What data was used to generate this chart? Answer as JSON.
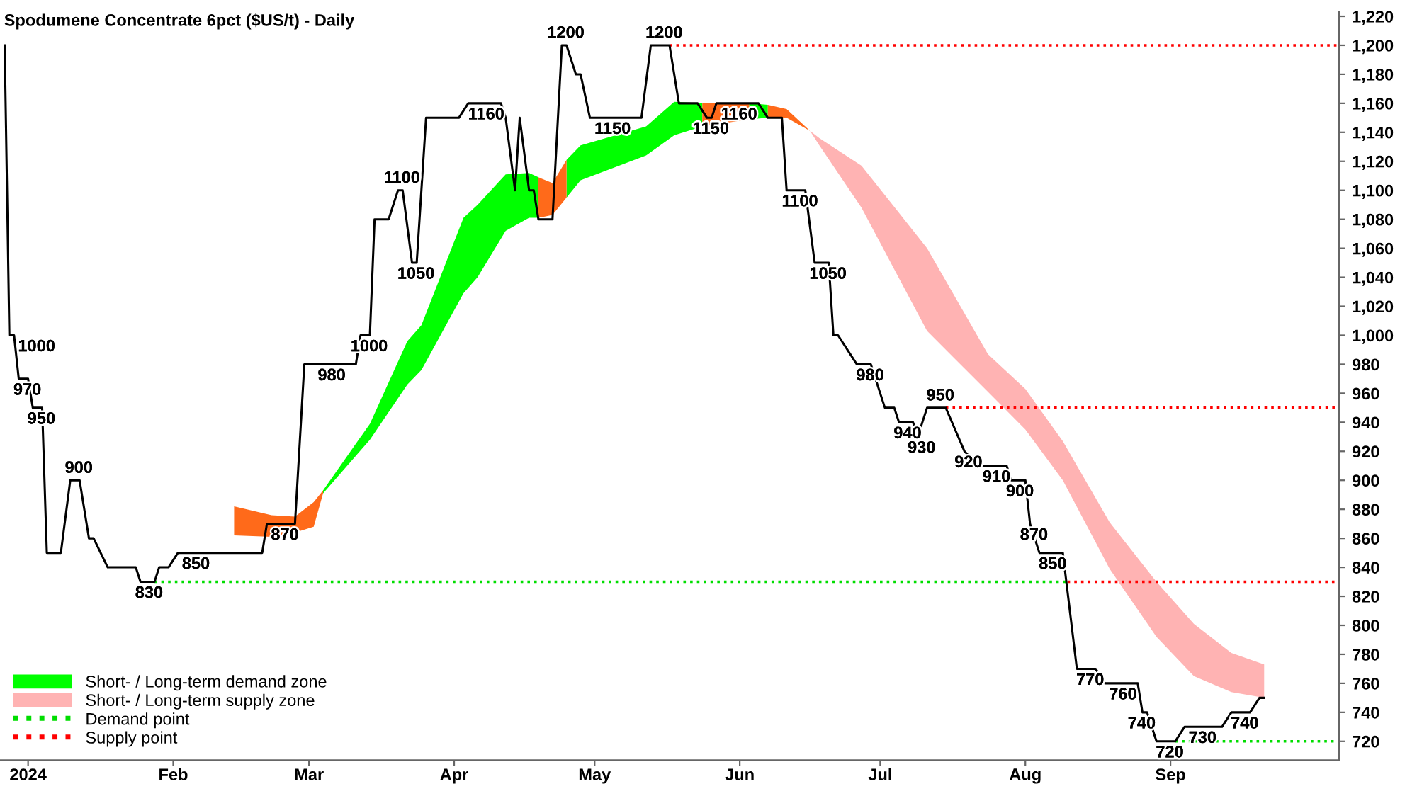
{
  "chart_data": {
    "type": "line",
    "title": "Spodumene Concentrate 6pct ($US/t) - Daily",
    "xlim": [
      "2023-12-26",
      "2024-10-07"
    ],
    "xticks": [
      {
        "value": "2024-01-01",
        "label": "2024"
      },
      {
        "value": "2024-02-01",
        "label": "Feb"
      },
      {
        "value": "2024-03-01",
        "label": "Mar"
      },
      {
        "value": "2024-04-01",
        "label": "Apr"
      },
      {
        "value": "2024-05-01",
        "label": "May"
      },
      {
        "value": "2024-06-01",
        "label": "Jun"
      },
      {
        "value": "2024-07-01",
        "label": "Jul"
      },
      {
        "value": "2024-08-01",
        "label": "Aug"
      },
      {
        "value": "2024-09-01",
        "label": "Sep"
      }
    ],
    "ylim": [
      707,
      1223
    ],
    "yticks": [
      720,
      740,
      760,
      780,
      800,
      820,
      840,
      860,
      880,
      900,
      920,
      940,
      960,
      980,
      {
        "value": 1000,
        "label": "1,000"
      },
      {
        "value": 1020,
        "label": "1,020"
      },
      {
        "value": 1040,
        "label": "1,040"
      },
      {
        "value": 1060,
        "label": "1,060"
      },
      {
        "value": 1080,
        "label": "1,080"
      },
      {
        "value": 1100,
        "label": "1,100"
      },
      {
        "value": 1120,
        "label": "1,120"
      },
      {
        "value": 1140,
        "label": "1,140"
      },
      {
        "value": 1160,
        "label": "1,160"
      },
      {
        "value": 1180,
        "label": "1,180"
      },
      {
        "value": 1200,
        "label": "1,200"
      },
      {
        "value": 1220,
        "label": "1,220"
      }
    ],
    "grid": false,
    "legend": "bottom left",
    "marker": "none",
    "series": [
      {
        "type": "line",
        "color": "#000000",
        "line_style": "solid",
        "x": [
          "2023-12-27",
          "2023-12-28",
          "2023-12-29",
          "2023-12-30",
          "2024-01-01",
          "2024-01-02",
          "2024-01-04",
          "2024-01-05",
          "2024-01-08",
          "2024-01-10",
          "2024-01-12",
          "2024-01-14",
          "2024-01-15",
          "2024-01-18",
          "2024-01-24",
          "2024-01-25",
          "2024-01-28",
          "2024-01-29",
          "2024-01-31",
          "2024-02-02",
          "2024-02-20",
          "2024-02-21",
          "2024-02-27",
          "2024-02-29",
          "2024-03-11",
          "2024-03-12",
          "2024-03-14",
          "2024-03-15",
          "2024-03-18",
          "2024-03-20",
          "2024-03-21",
          "2024-03-23",
          "2024-03-24",
          "2024-03-26",
          "2024-04-02",
          "2024-04-04",
          "2024-04-11",
          "2024-04-12",
          "2024-04-14",
          "2024-04-15",
          "2024-04-17",
          "2024-04-18",
          "2024-04-19",
          "2024-04-22",
          "2024-04-24",
          "2024-04-25",
          "2024-04-27",
          "2024-04-28",
          "2024-04-30",
          "2024-05-11",
          "2024-05-13",
          "2024-05-17",
          "2024-05-19",
          "2024-05-23",
          "2024-05-25",
          "2024-05-26",
          "2024-05-27",
          "2024-06-05",
          "2024-06-07",
          "2024-06-10",
          "2024-06-11",
          "2024-06-15",
          "2024-06-17",
          "2024-06-20",
          "2024-06-21",
          "2024-06-22",
          "2024-06-26",
          "2024-06-29",
          "2024-07-02",
          "2024-07-04",
          "2024-07-05",
          "2024-07-08",
          "2024-07-09",
          "2024-07-11",
          "2024-07-15",
          "2024-07-19",
          "2024-07-22",
          "2024-07-28",
          "2024-07-29",
          "2024-08-01",
          "2024-08-02",
          "2024-08-04",
          "2024-08-09",
          "2024-08-12",
          "2024-08-16",
          "2024-08-18",
          "2024-08-25",
          "2024-08-26",
          "2024-08-27",
          "2024-08-29",
          "2024-09-02",
          "2024-09-04",
          "2024-09-12",
          "2024-09-14",
          "2024-09-18",
          "2024-09-20",
          "2024-09-21"
        ],
        "values": [
          1200,
          1000,
          1000,
          970,
          970,
          950,
          950,
          850,
          850,
          900,
          900,
          860,
          860,
          840,
          840,
          830,
          830,
          840,
          840,
          850,
          850,
          870,
          870,
          980,
          980,
          1000,
          1000,
          1080,
          1080,
          1100,
          1100,
          1050,
          1050,
          1150,
          1150,
          1160,
          1160,
          1150,
          1100,
          1150,
          1100,
          1100,
          1080,
          1080,
          1200,
          1200,
          1180,
          1180,
          1150,
          1150,
          1200,
          1200,
          1160,
          1160,
          1150,
          1150,
          1160,
          1160,
          1150,
          1150,
          1100,
          1100,
          1050,
          1050,
          1000,
          1000,
          980,
          980,
          950,
          950,
          940,
          940,
          930,
          950,
          950,
          920,
          910,
          910,
          900,
          900,
          870,
          850,
          850,
          770,
          770,
          760,
          760,
          740,
          740,
          720,
          720,
          730,
          730,
          740,
          740,
          750,
          750
        ]
      },
      {
        "type": "area",
        "color": "#00ff00",
        "name": "Short- / Long-term demand zone",
        "x": [
          "2024-03-04",
          "2024-03-14",
          "2024-03-22",
          "2024-03-25",
          "2024-04-03",
          "2024-04-06",
          "2024-04-12",
          "2024-04-17",
          "2024-04-19"
        ],
        "lower": [
          891,
          928,
          966,
          976,
          1029,
          1040,
          1072,
          1081,
          1081
        ],
        "upper": [
          893,
          939,
          996,
          1007,
          1081,
          1090,
          1111,
          1112,
          1109
        ],
        "values": [
          null,
          null,
          null,
          null,
          null,
          null,
          null,
          null,
          null
        ]
      },
      {
        "type": "area",
        "color": "#00ff00",
        "x": [
          "2024-04-25",
          "2024-04-28",
          "2024-05-12",
          "2024-05-18",
          "2024-05-24"
        ],
        "lower": [
          1095,
          1107,
          1124,
          1138,
          1144
        ],
        "upper": [
          1121,
          1131,
          1144,
          1161,
          1160
        ],
        "values": [
          null,
          null,
          null,
          null,
          null
        ]
      },
      {
        "type": "area",
        "color": "#00ff00",
        "x": [
          "2024-06-03",
          "2024-06-07"
        ],
        "lower": [
          1149,
          1150
        ],
        "upper": [
          1160,
          1159
        ],
        "values": [
          null,
          null
        ]
      },
      {
        "type": "area",
        "color": "#ff6a1a",
        "x": [
          "2024-02-14",
          "2024-02-22",
          "2024-02-27",
          "2024-03-02",
          "2024-03-04"
        ],
        "lower": [
          862,
          861,
          864,
          868,
          891
        ],
        "upper": [
          882,
          876,
          875,
          885,
          893
        ],
        "values": [
          null,
          null,
          null,
          null,
          null
        ]
      },
      {
        "type": "area",
        "color": "#ff6a1a",
        "x": [
          "2024-04-19",
          "2024-04-22",
          "2024-04-25"
        ],
        "lower": [
          1081,
          1083,
          1095
        ],
        "upper": [
          1109,
          1105,
          1121
        ],
        "values": [
          null,
          null,
          null
        ]
      },
      {
        "type": "area",
        "color": "#ff6a1a",
        "x": [
          "2024-05-24",
          "2024-06-03"
        ],
        "lower": [
          1144,
          1149
        ],
        "upper": [
          1160,
          1160
        ],
        "values": [
          null,
          null
        ]
      },
      {
        "type": "area",
        "color": "#ff6a1a",
        "x": [
          "2024-06-07",
          "2024-06-11",
          "2024-06-16"
        ],
        "lower": [
          1150,
          1150,
          1141
        ],
        "upper": [
          1159,
          1156,
          1141
        ],
        "values": [
          null,
          null,
          null
        ]
      },
      {
        "type": "area",
        "color": "#ffb3b3",
        "name": "Short- / Long-term supply zone",
        "x": [
          "2024-06-16",
          "2024-06-18",
          "2024-06-27",
          "2024-07-11",
          "2024-07-24",
          "2024-08-01",
          "2024-08-09",
          "2024-08-19",
          "2024-08-29",
          "2024-09-06",
          "2024-09-14",
          "2024-09-21"
        ],
        "lower": [
          1141,
          1131,
          1088,
          1003,
          961,
          935,
          900,
          839,
          792,
          765,
          754,
          750
        ],
        "upper": [
          1141,
          1136,
          1117,
          1060,
          987,
          963,
          927,
          871,
          830,
          801,
          781,
          773
        ],
        "values": [
          null,
          null,
          null,
          null,
          null,
          null,
          null,
          null,
          null,
          null,
          null,
          null
        ]
      },
      {
        "type": "line",
        "color": "#00dd00",
        "line_style": "dotted",
        "name": "Demand point",
        "x": [
          "2024-01-28",
          "2024-08-10"
        ],
        "values": [
          830,
          830
        ]
      },
      {
        "type": "line",
        "color": "#00dd00",
        "line_style": "dotted",
        "x": [
          "2024-09-02",
          "2024-10-07"
        ],
        "values": [
          720,
          720
        ]
      },
      {
        "type": "line",
        "color": "#ff0000",
        "line_style": "dotted",
        "name": "Supply point",
        "x": [
          "2024-05-17",
          "2024-10-07"
        ],
        "values": [
          1200,
          1200
        ]
      },
      {
        "type": "line",
        "color": "#ff0000",
        "line_style": "dotted",
        "x": [
          "2024-07-15",
          "2024-10-07"
        ],
        "values": [
          950,
          950
        ]
      },
      {
        "type": "line",
        "color": "#ff0000",
        "line_style": "dotted",
        "x": [
          "2024-08-10",
          "2024-10-07"
        ],
        "values": [
          830,
          830
        ]
      }
    ],
    "annotations": [
      {
        "text": "1000",
        "x": "2023-12-29",
        "y": 1000
      },
      {
        "text": "970",
        "x": "2023-12-31",
        "y": 970
      },
      {
        "text": "950",
        "x": "2024-01-03",
        "y": 950
      },
      {
        "text": "900",
        "x": "2024-01-11",
        "y": 900
      },
      {
        "text": "830",
        "x": "2024-01-26",
        "y": 830
      },
      {
        "text": "850",
        "x": "2024-02-05",
        "y": 850
      },
      {
        "text": "870",
        "x": "2024-02-24",
        "y": 870
      },
      {
        "text": "980",
        "x": "2024-03-05",
        "y": 980
      },
      {
        "text": "1000",
        "x": "2024-03-13",
        "y": 1000
      },
      {
        "text": "1100",
        "x": "2024-03-20",
        "y": 1100
      },
      {
        "text": "1050",
        "x": "2024-03-23",
        "y": 1050
      },
      {
        "text": "1160",
        "x": "2024-04-07",
        "y": 1160
      },
      {
        "text": "1200",
        "x": "2024-04-24",
        "y": 1200
      },
      {
        "text": "1150",
        "x": "2024-05-04",
        "y": 1150
      },
      {
        "text": "1200",
        "x": "2024-05-15",
        "y": 1200
      },
      {
        "text": "1150",
        "x": "2024-05-25",
        "y": 1150
      },
      {
        "text": "1160",
        "x": "2024-05-31",
        "y": 1160
      },
      {
        "text": "1100",
        "x": "2024-06-13",
        "y": 1100
      },
      {
        "text": "1050",
        "x": "2024-06-19",
        "y": 1050
      },
      {
        "text": "980",
        "x": "2024-06-28",
        "y": 980
      },
      {
        "text": "940",
        "x": "2024-07-06",
        "y": 940
      },
      {
        "text": "930",
        "x": "2024-07-09",
        "y": 930
      },
      {
        "text": "950",
        "x": "2024-07-13",
        "y": 950
      },
      {
        "text": "920",
        "x": "2024-07-19",
        "y": 920
      },
      {
        "text": "910",
        "x": "2024-07-25",
        "y": 910
      },
      {
        "text": "900",
        "x": "2024-07-30",
        "y": 900
      },
      {
        "text": "870",
        "x": "2024-08-02",
        "y": 870
      },
      {
        "text": "850",
        "x": "2024-08-06",
        "y": 850
      },
      {
        "text": "770",
        "x": "2024-08-14",
        "y": 770
      },
      {
        "text": "760",
        "x": "2024-08-21",
        "y": 760
      },
      {
        "text": "740",
        "x": "2024-08-25",
        "y": 740
      },
      {
        "text": "720",
        "x": "2024-08-31",
        "y": 720
      },
      {
        "text": "730",
        "x": "2024-09-07",
        "y": 730
      },
      {
        "text": "740",
        "x": "2024-09-16",
        "y": 740
      }
    ]
  }
}
